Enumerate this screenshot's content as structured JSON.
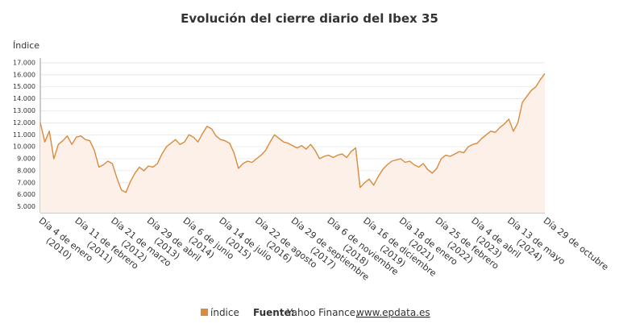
{
  "chart_data": {
    "type": "line",
    "title": "Evolución del cierre diario del Ibex 35",
    "y_label": "Índice",
    "categories": [
      "Día 4 de enero",
      null,
      null,
      null,
      null,
      null,
      null,
      null,
      "Día 11 de febrero",
      null,
      null,
      null,
      null,
      null,
      null,
      null,
      "Día 21 de marzo",
      null,
      null,
      null,
      null,
      null,
      null,
      null,
      "Día 29 de abril",
      null,
      null,
      null,
      null,
      null,
      null,
      null,
      "Día 6 de junio",
      null,
      null,
      null,
      null,
      null,
      null,
      null,
      "Día 14 de julio",
      null,
      null,
      null,
      null,
      null,
      null,
      null,
      "Día 22 de agosto",
      null,
      null,
      null,
      null,
      null,
      null,
      null,
      "Día 29 de septiembre",
      null,
      null,
      null,
      null,
      null,
      null,
      null,
      "Día 6 de noviembre",
      null,
      null,
      null,
      null,
      null,
      null,
      null,
      "Día 16 de diciembre",
      null,
      null,
      null,
      null,
      null,
      null,
      null,
      "Día 18 de enero",
      null,
      null,
      null,
      null,
      null,
      null,
      null,
      "Día 25 de febrero",
      null,
      null,
      null,
      null,
      null,
      null,
      null,
      "Día 4 de abril",
      null,
      null,
      null,
      null,
      null,
      null,
      null,
      "Día 13 de mayo",
      null,
      null,
      null,
      null,
      null,
      null,
      null,
      "Día 29 de octubre"
    ],
    "category_years": [
      "(2010)",
      null,
      null,
      null,
      null,
      null,
      null,
      null,
      "(2011)",
      null,
      null,
      null,
      null,
      null,
      null,
      null,
      "(2012)",
      null,
      null,
      null,
      null,
      null,
      null,
      null,
      "(2013)",
      null,
      null,
      null,
      null,
      null,
      null,
      null,
      "(2014)",
      null,
      null,
      null,
      null,
      null,
      null,
      null,
      "(2015)",
      null,
      null,
      null,
      null,
      null,
      null,
      null,
      "(2016)",
      null,
      null,
      null,
      null,
      null,
      null,
      null,
      "(2017)",
      null,
      null,
      null,
      null,
      null,
      null,
      null,
      "(2018)",
      null,
      null,
      null,
      null,
      null,
      null,
      null,
      "(2019)",
      null,
      null,
      null,
      null,
      null,
      null,
      null,
      "(2021)",
      null,
      null,
      null,
      null,
      null,
      null,
      null,
      "(2022)",
      null,
      null,
      null,
      null,
      null,
      null,
      null,
      "(2023)",
      null,
      null,
      null,
      null,
      null,
      null,
      null,
      "(2024)",
      null,
      null,
      null,
      null,
      null,
      null,
      null,
      null
    ],
    "series": [
      {
        "name": "índice",
        "color": "#d98a3c",
        "values": [
          12000,
          10400,
          11300,
          9000,
          10200,
          10500,
          10900,
          10200,
          10800,
          10900,
          10600,
          10500,
          9700,
          8300,
          8500,
          8800,
          8600,
          7400,
          6400,
          6200,
          7100,
          7800,
          8300,
          8000,
          8400,
          8300,
          8600,
          9400,
          10000,
          10300,
          10600,
          10200,
          10400,
          11000,
          10800,
          10400,
          11100,
          11700,
          11500,
          10900,
          10600,
          10500,
          10300,
          9500,
          8200,
          8600,
          8800,
          8700,
          9000,
          9300,
          9700,
          10400,
          11000,
          10700,
          10400,
          10300,
          10100,
          9900,
          10100,
          9800,
          10200,
          9700,
          9000,
          9200,
          9300,
          9100,
          9300,
          9400,
          9100,
          9600,
          9900,
          6600,
          7000,
          7300,
          6800,
          7500,
          8100,
          8500,
          8800,
          8900,
          9000,
          8700,
          8800,
          8500,
          8300,
          8600,
          8100,
          7800,
          8200,
          9000,
          9300,
          9200,
          9400,
          9600,
          9500,
          10000,
          10200,
          10300,
          10700,
          11000,
          11300,
          11200,
          11600,
          11900,
          12300,
          11300,
          12000,
          13700,
          14200,
          14700,
          15000,
          15600,
          16100
        ]
      }
    ],
    "ylim": [
      4500,
      17400
    ],
    "yticks": [
      {
        "value": 5000,
        "label": "5.000"
      },
      {
        "value": 6000,
        "label": "6.000"
      },
      {
        "value": 7000,
        "label": "7.000"
      },
      {
        "value": 8000,
        "label": "8.000"
      },
      {
        "value": 9000,
        "label": "9.000"
      },
      {
        "value": 10000,
        "label": "10.000"
      },
      {
        "value": 11000,
        "label": "11.000"
      },
      {
        "value": 12000,
        "label": "12.000"
      },
      {
        "value": 13000,
        "label": "13.000"
      },
      {
        "value": 14000,
        "label": "14.000"
      },
      {
        "value": 15000,
        "label": "15.000"
      },
      {
        "value": 16000,
        "label": "16.000"
      },
      {
        "value": 17000,
        "label": "17.000"
      }
    ],
    "grid": true,
    "source_label": "Fuente:",
    "source": "Yahoo Finance,",
    "source_link": "www.epdata.es"
  }
}
